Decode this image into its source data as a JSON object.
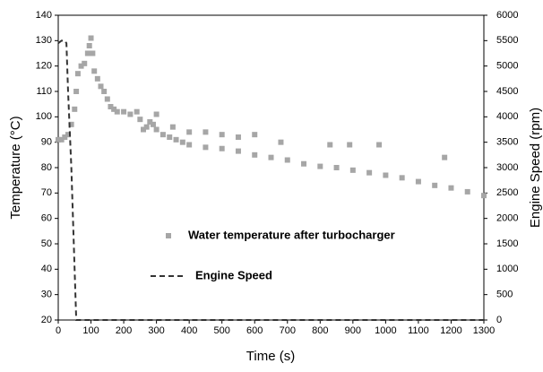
{
  "chart_data": {
    "type": "combo",
    "xlabel": "Time (s)",
    "ylabel": "Temperature (°C)",
    "y2label": "Engine Speed (rpm)",
    "xlim": [
      0,
      1300
    ],
    "xticks": [
      0,
      100,
      200,
      300,
      400,
      500,
      600,
      700,
      800,
      900,
      1000,
      1100,
      1200,
      1300
    ],
    "ylim": [
      20,
      140
    ],
    "yticks": [
      20,
      30,
      40,
      50,
      60,
      70,
      80,
      90,
      100,
      110,
      120,
      130,
      140
    ],
    "y2lim": [
      0,
      6000
    ],
    "y2ticks": [
      0,
      500,
      1000,
      1500,
      2000,
      2500,
      3000,
      3500,
      4000,
      4500,
      5000,
      5500,
      6000
    ],
    "series": [
      {
        "name": "Water temperature after turbocharger",
        "type": "scatter",
        "color": "#a6a6a6",
        "x": [
          0,
          10,
          20,
          30,
          40,
          50,
          55,
          60,
          70,
          80,
          90,
          95,
          100,
          105,
          110,
          120,
          130,
          140,
          150,
          160,
          170,
          180,
          200,
          220,
          240,
          250,
          260,
          270,
          280,
          290,
          300,
          300,
          320,
          340,
          350,
          360,
          380,
          400,
          400,
          450,
          450,
          500,
          500,
          550,
          550,
          600,
          600,
          650,
          680,
          700,
          750,
          800,
          830,
          850,
          890,
          900,
          950,
          980,
          1000,
          1050,
          1100,
          1150,
          1180,
          1200,
          1250,
          1300
        ],
        "values": [
          91,
          91,
          92,
          93,
          97,
          103,
          110,
          117,
          120,
          121,
          125,
          128,
          131,
          125,
          118,
          115,
          112,
          110,
          107,
          104,
          103,
          102,
          102,
          101,
          102,
          99,
          95,
          96,
          98,
          97,
          95,
          101,
          93,
          92,
          96,
          91,
          90,
          89,
          94,
          88,
          94,
          87.5,
          93,
          86.5,
          92,
          85,
          93,
          84,
          90,
          83,
          81.5,
          80.5,
          89,
          80,
          89,
          79,
          78,
          89,
          77,
          76,
          74.5,
          73,
          84,
          72,
          70.5,
          69
        ]
      },
      {
        "name": "Engine Speed",
        "type": "line",
        "axis": "y2",
        "color": "#333333",
        "dashed": true,
        "x": [
          0,
          10,
          20,
          25,
          30,
          40,
          50,
          55,
          1300
        ],
        "values": [
          5450,
          5500,
          5500,
          5450,
          4500,
          3000,
          1000,
          0,
          0
        ]
      }
    ]
  }
}
